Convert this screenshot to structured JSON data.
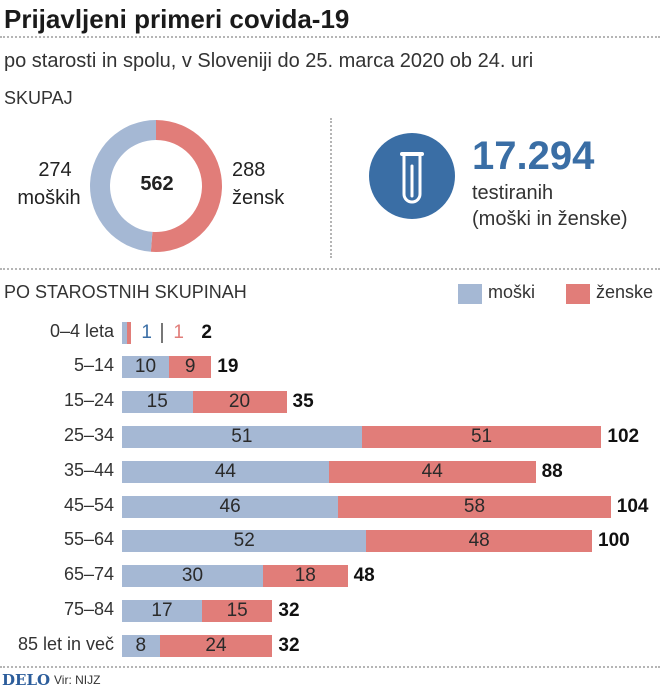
{
  "header": {
    "title": "Prijavljeni primeri covida-19",
    "subtitle": "po starosti in spolu, v Sloveniji do 25. marca 2020 ob 24. uri"
  },
  "summary": {
    "section_label": "SKUPAJ",
    "men_count": "274",
    "men_label": "moških",
    "women_count": "288",
    "women_label": "žensk",
    "total": "562",
    "tested_value": "17.294",
    "tested_label_1": "testiranih",
    "tested_label_2": "(moški in ženske)",
    "icon": "test-tube-icon"
  },
  "age_section": {
    "section_label": "PO STAROSTNIH SKUPINAH",
    "legend_men": "moški",
    "legend_women": "ženske"
  },
  "colors": {
    "men": "#a5b8d4",
    "women": "#e17d79",
    "accent": "#3a6ea5",
    "icon_circle": "#3a6ea5"
  },
  "chart_data": [
    {
      "type": "pie",
      "title": "SKUPAJ",
      "categories": [
        "moških",
        "žensk"
      ],
      "values": [
        274,
        288
      ],
      "total": 562
    },
    {
      "type": "bar",
      "orientation": "horizontal",
      "stacked": true,
      "title": "PO STAROSTNIH SKUPINAH",
      "categories": [
        "0–4 leta",
        "5–14",
        "15–24",
        "25–34",
        "35–44",
        "45–54",
        "55–64",
        "65–74",
        "75–84",
        "85 let in več"
      ],
      "series": [
        {
          "name": "moški",
          "values": [
            1,
            10,
            15,
            51,
            44,
            46,
            52,
            30,
            17,
            8
          ]
        },
        {
          "name": "ženske",
          "values": [
            1,
            9,
            20,
            51,
            44,
            58,
            48,
            18,
            15,
            24
          ]
        }
      ],
      "totals": [
        2,
        19,
        35,
        102,
        88,
        104,
        100,
        48,
        32,
        32
      ],
      "legend": "top-right"
    }
  ],
  "footer": {
    "logo": "DELO",
    "source": "Vir: NIJZ"
  }
}
